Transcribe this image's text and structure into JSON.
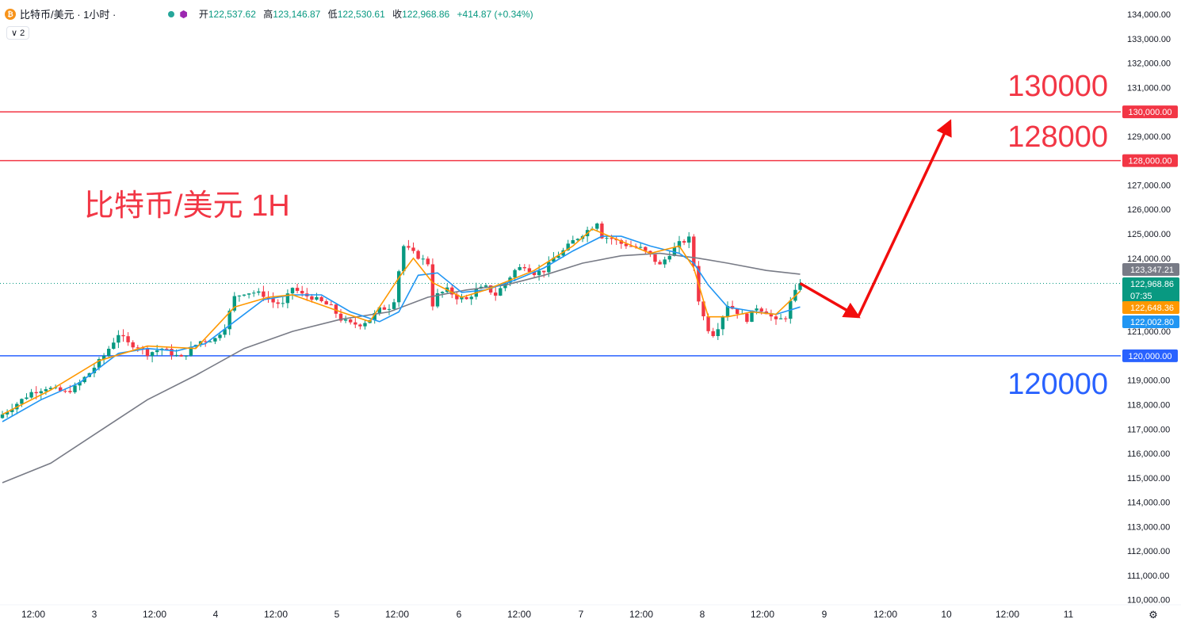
{
  "header": {
    "symbol_title": "比特币/美元 · 1小时 ·",
    "coin_icon": "bitcoin-icon",
    "open_label": "开",
    "open_value": "122,537.62",
    "high_label": "高",
    "high_value": "123,146.87",
    "low_label": "低",
    "low_value": "122,530.61",
    "close_label": "收",
    "close_value": "122,968.86",
    "change": "+414.87 (+0.34%)",
    "indicator_badge": "∨ 2"
  },
  "colors": {
    "up": "#089981",
    "down": "#f23645",
    "blue_line": "#2962ff",
    "red_line": "#f23645",
    "ema_fast": "#ff9800",
    "ema_mid": "#2196f3",
    "ema_slow": "#787b86"
  },
  "chart_data": {
    "type": "candlestick",
    "title": "比特币/美元 1H",
    "ylim": [
      109700,
      134300
    ],
    "yticks": [
      "134,000.00",
      "133,000.00",
      "132,000.00",
      "131,000.00",
      "130,000.00",
      "129,000.00",
      "128,000.00",
      "127,000.00",
      "126,000.00",
      "125,000.00",
      "124,000.00",
      "123,000.00",
      "122,000.00",
      "121,000.00",
      "120,000.00",
      "119,000.00",
      "118,000.00",
      "117,000.00",
      "116,000.00",
      "115,000.00",
      "114,000.00",
      "113,000.00",
      "112,000.00",
      "111,000.00",
      "110,000.00"
    ],
    "xticks": [
      "12:00",
      "3",
      "12:00",
      "4",
      "12:00",
      "5",
      "12:00",
      "6",
      "12:00",
      "7",
      "12:00",
      "8",
      "12:00",
      "9",
      "12:00",
      "10",
      "12:00",
      "11"
    ],
    "horizontal_levels": [
      {
        "label": "130000",
        "price": 130000,
        "tag": "130,000.00",
        "color": "#f23645"
      },
      {
        "label": "128000",
        "price": 128000,
        "tag": "128,000.00",
        "color": "#f23645"
      },
      {
        "label": "120000",
        "price": 120000,
        "tag": "120,000.00",
        "color": "#2962ff"
      }
    ],
    "price_tags": [
      {
        "text": "123,347.21",
        "price": 123347.21,
        "color": "#787b86"
      },
      {
        "text": "122,968.86",
        "sub": "07:35",
        "price": 122968.86,
        "color": "#089981"
      },
      {
        "text": "122,648.36",
        "price": 122648.36,
        "color": "#ff9800"
      },
      {
        "text": "122,002.80",
        "price": 122002.8,
        "color": "#2196f3"
      }
    ],
    "close_path": [
      [
        0,
        117600
      ],
      [
        6,
        118500
      ],
      [
        9,
        118700
      ],
      [
        11,
        118600
      ],
      [
        13,
        118500
      ],
      [
        15,
        118700
      ],
      [
        18,
        119300
      ],
      [
        21,
        120000
      ],
      [
        24,
        120900
      ],
      [
        26,
        120500
      ],
      [
        28,
        120400
      ],
      [
        30,
        120100
      ],
      [
        33,
        120300
      ],
      [
        35,
        120100
      ],
      [
        37,
        119900
      ],
      [
        39,
        120300
      ],
      [
        41,
        120600
      ],
      [
        44,
        120700
      ],
      [
        46,
        121200
      ],
      [
        48,
        122400
      ],
      [
        50,
        122600
      ],
      [
        52,
        122600
      ],
      [
        54,
        122500
      ],
      [
        56,
        122200
      ],
      [
        58,
        122100
      ],
      [
        60,
        122800
      ],
      [
        62,
        122500
      ],
      [
        64,
        122400
      ],
      [
        66,
        122200
      ],
      [
        68,
        122000
      ],
      [
        70,
        121500
      ],
      [
        72,
        121300
      ],
      [
        74,
        121300
      ],
      [
        76,
        121500
      ],
      [
        78,
        121900
      ],
      [
        80,
        122000
      ],
      [
        81,
        122300
      ],
      [
        82,
        123500
      ],
      [
        83,
        124500
      ],
      [
        85,
        124200
      ],
      [
        88,
        123800
      ],
      [
        89,
        122100
      ],
      [
        90,
        122500
      ],
      [
        92,
        122700
      ],
      [
        94,
        122400
      ],
      [
        96,
        122300
      ],
      [
        98,
        122700
      ],
      [
        100,
        122800
      ],
      [
        102,
        122500
      ],
      [
        104,
        123000
      ],
      [
        106,
        123500
      ],
      [
        108,
        123700
      ],
      [
        110,
        123400
      ],
      [
        112,
        123500
      ],
      [
        114,
        124000
      ],
      [
        116,
        124300
      ],
      [
        118,
        124700
      ],
      [
        120,
        125000
      ],
      [
        122,
        125300
      ],
      [
        123,
        125500
      ],
      [
        124,
        124900
      ],
      [
        126,
        124800
      ],
      [
        128,
        124600
      ],
      [
        130,
        124500
      ],
      [
        132,
        124400
      ],
      [
        134,
        124100
      ],
      [
        136,
        123700
      ],
      [
        138,
        124200
      ],
      [
        140,
        124600
      ],
      [
        142,
        124800
      ],
      [
        143,
        123700
      ],
      [
        144,
        122300
      ],
      [
        145,
        121600
      ],
      [
        146,
        121100
      ],
      [
        147,
        120900
      ],
      [
        148,
        121200
      ],
      [
        150,
        122100
      ],
      [
        152,
        121800
      ],
      [
        154,
        121500
      ],
      [
        156,
        122000
      ],
      [
        158,
        121800
      ],
      [
        160,
        121400
      ],
      [
        162,
        121600
      ],
      [
        163,
        122200
      ],
      [
        164,
        122600
      ],
      [
        165,
        122968.86
      ]
    ],
    "ema_fast_path": [
      [
        0,
        117600
      ],
      [
        10,
        118600
      ],
      [
        20,
        119800
      ],
      [
        30,
        120400
      ],
      [
        40,
        120300
      ],
      [
        48,
        122000
      ],
      [
        55,
        122400
      ],
      [
        60,
        122500
      ],
      [
        70,
        121800
      ],
      [
        76,
        121400
      ],
      [
        82,
        123200
      ],
      [
        85,
        124000
      ],
      [
        89,
        123000
      ],
      [
        95,
        122400
      ],
      [
        100,
        122700
      ],
      [
        110,
        123500
      ],
      [
        118,
        124500
      ],
      [
        122,
        125200
      ],
      [
        128,
        124700
      ],
      [
        134,
        124200
      ],
      [
        140,
        124500
      ],
      [
        143,
        123600
      ],
      [
        146,
        121600
      ],
      [
        150,
        121600
      ],
      [
        155,
        121800
      ],
      [
        160,
        121700
      ],
      [
        165,
        122648.36
      ]
    ],
    "ema_mid_path": [
      [
        0,
        117300
      ],
      [
        8,
        118200
      ],
      [
        16,
        118900
      ],
      [
        24,
        120100
      ],
      [
        30,
        120300
      ],
      [
        36,
        120200
      ],
      [
        42,
        120500
      ],
      [
        48,
        121400
      ],
      [
        54,
        122300
      ],
      [
        60,
        122500
      ],
      [
        66,
        122500
      ],
      [
        72,
        121800
      ],
      [
        78,
        121400
      ],
      [
        82,
        121800
      ],
      [
        86,
        123300
      ],
      [
        90,
        123400
      ],
      [
        95,
        122600
      ],
      [
        100,
        122700
      ],
      [
        106,
        123100
      ],
      [
        112,
        123600
      ],
      [
        118,
        124300
      ],
      [
        124,
        124900
      ],
      [
        128,
        124900
      ],
      [
        134,
        124500
      ],
      [
        140,
        124200
      ],
      [
        143,
        123800
      ],
      [
        146,
        122900
      ],
      [
        150,
        122000
      ],
      [
        156,
        121800
      ],
      [
        160,
        121700
      ],
      [
        165,
        122002.8
      ]
    ],
    "ema_slow_path": [
      [
        0,
        114800
      ],
      [
        10,
        115600
      ],
      [
        20,
        116900
      ],
      [
        30,
        118200
      ],
      [
        40,
        119200
      ],
      [
        50,
        120300
      ],
      [
        60,
        121000
      ],
      [
        70,
        121500
      ],
      [
        80,
        121800
      ],
      [
        88,
        122400
      ],
      [
        96,
        122700
      ],
      [
        104,
        122900
      ],
      [
        112,
        123300
      ],
      [
        120,
        123800
      ],
      [
        128,
        124100
      ],
      [
        136,
        124200
      ],
      [
        144,
        124000
      ],
      [
        150,
        123800
      ],
      [
        158,
        123500
      ],
      [
        165,
        123347.21
      ]
    ],
    "forecast_arrows": [
      {
        "from": [
          165,
          122968.86
        ],
        "to": [
          177,
          121600
        ]
      },
      {
        "from": [
          177,
          121600
        ],
        "to": [
          196,
          129600
        ]
      }
    ]
  }
}
